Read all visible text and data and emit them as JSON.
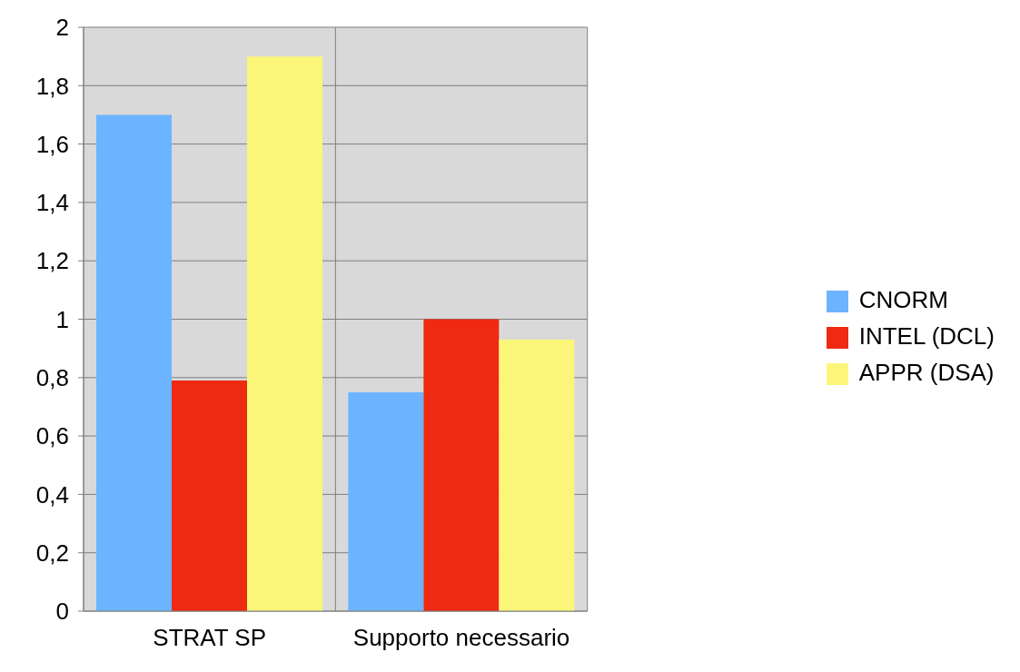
{
  "chart_data": {
    "type": "bar",
    "categories": [
      "STRAT SP",
      "Supporto necessario"
    ],
    "series": [
      {
        "name": "CNORM",
        "color": "#6cb4ff",
        "values": [
          1.7,
          0.75
        ]
      },
      {
        "name": "INTEL (DCL)",
        "color": "#ee2a12",
        "values": [
          0.79,
          1.0
        ]
      },
      {
        "name": "APPR (DSA)",
        "color": "#fbf679",
        "values": [
          1.9,
          0.93
        ]
      }
    ],
    "ylim": [
      0,
      2
    ],
    "yticks": [
      {
        "value": 0,
        "label": "0"
      },
      {
        "value": 0.2,
        "label": "0,2"
      },
      {
        "value": 0.4,
        "label": "0,4"
      },
      {
        "value": 0.6,
        "label": "0,6"
      },
      {
        "value": 0.8,
        "label": "0,8"
      },
      {
        "value": 1,
        "label": "1"
      },
      {
        "value": 1.2,
        "label": "1,2"
      },
      {
        "value": 1.4,
        "label": "1,4"
      },
      {
        "value": 1.6,
        "label": "1,6"
      },
      {
        "value": 1.8,
        "label": "1,8"
      },
      {
        "value": 2,
        "label": "2"
      }
    ],
    "grid": true,
    "legend": "right"
  }
}
